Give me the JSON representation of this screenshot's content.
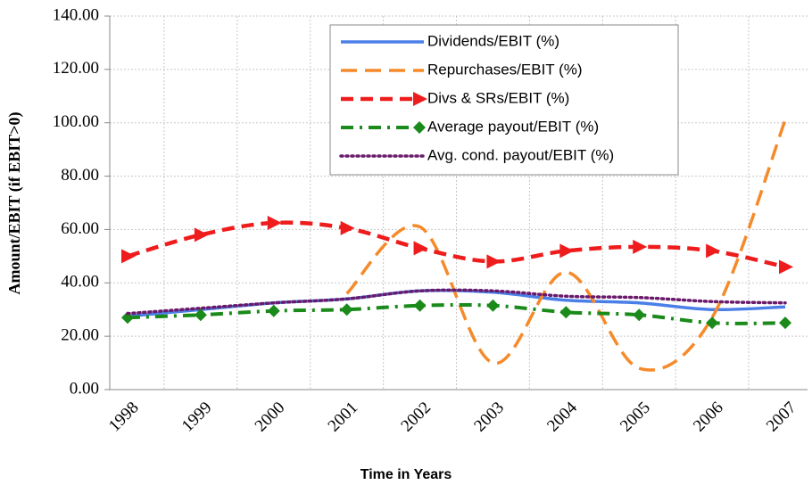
{
  "chart_data": {
    "type": "line",
    "x_label": "Time in Years",
    "y_label": "Amount/EBIT (if EBIT>0)",
    "categories": [
      "1998",
      "1999",
      "2000",
      "2001",
      "2002",
      "2003",
      "2004",
      "2005",
      "2006",
      "2007"
    ],
    "series": [
      {
        "name": "Dividends/EBIT (%)",
        "color": "#4a7fe8",
        "style": "solid",
        "values": [
          27.5,
          30,
          32.5,
          34,
          37,
          36.5,
          33.5,
          32.5,
          30,
          31
        ]
      },
      {
        "name": "Repurchases/EBIT (%)",
        "color": "#f58a2a",
        "style": "dash",
        "values": [
          null,
          null,
          null,
          36,
          61,
          10,
          44,
          8,
          27,
          101
        ]
      },
      {
        "name": "Divs & SRs/EBIT (%)",
        "color": "#ee1c1c",
        "style": "dash-arrow",
        "values": [
          50,
          58,
          62.5,
          60.5,
          53,
          48,
          52,
          53.5,
          52,
          46
        ]
      },
      {
        "name": "Average payout/EBIT (%)",
        "color": "#1a8a1a",
        "style": "dashdot-diamond",
        "values": [
          27,
          28,
          29.5,
          30,
          31.5,
          31.5,
          29,
          28,
          25,
          25
        ]
      },
      {
        "name": "Avg. cond. payout/EBIT (%)",
        "color": "#6a1a6a",
        "style": "dot",
        "values": [
          28.5,
          30.5,
          32.5,
          34,
          37,
          37,
          35,
          34.5,
          33,
          32.5
        ]
      }
    ],
    "ylim": [
      0,
      140
    ],
    "yticks": [
      {
        "value": 0,
        "label": "0.00"
      },
      {
        "value": 20,
        "label": "20.00"
      },
      {
        "value": 40,
        "label": "40.00"
      },
      {
        "value": 60,
        "label": "60.00"
      },
      {
        "value": 80,
        "label": "80.00"
      },
      {
        "value": 100,
        "label": "100.00"
      },
      {
        "value": 120,
        "label": "120.00"
      },
      {
        "value": 140,
        "label": "140.00"
      }
    ],
    "grid": true
  }
}
